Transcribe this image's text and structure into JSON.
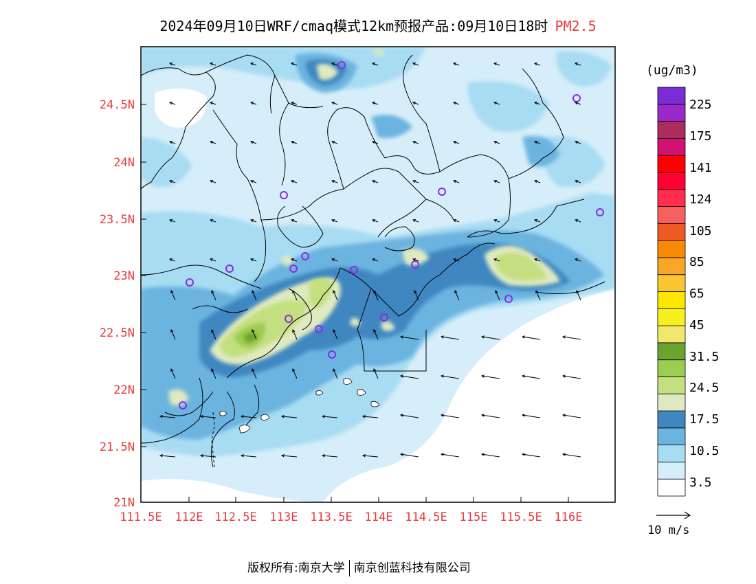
{
  "header": {
    "title": "2024年09月10日WRF/cmaq模式12km预报产品:09月10日18时",
    "pollutant": "PM2.5"
  },
  "map": {
    "lat_labels": [
      "24.5N",
      "24N",
      "23.5N",
      "23N",
      "22.5N",
      "22N",
      "21.5N",
      "21N"
    ],
    "lon_labels": [
      "111.5E",
      "112E",
      "112.5E",
      "113E",
      "113.5E",
      "114E",
      "114.5E",
      "115E",
      "115.5E",
      "116E"
    ],
    "axis_label_color": "#e8383d"
  },
  "colorbar": {
    "unit": "(ug/m3)",
    "labels": [
      "225",
      "175",
      "141",
      "124",
      "105",
      "85",
      "65",
      "45",
      "31.5",
      "24.5",
      "17.5",
      "10.5",
      "3.5"
    ],
    "colors": [
      "#ffffff",
      "#d6eef9",
      "#a8dcf3",
      "#6cb4e0",
      "#3f87c1",
      "#dfeac0",
      "#c4df7f",
      "#9ccc50",
      "#6aa42f",
      "#f2e66b",
      "#f7f01f",
      "#fde600",
      "#fbc630",
      "#f8a623",
      "#f68a05",
      "#ee5a24",
      "#f86060",
      "#ff2e4e",
      "#ff0030",
      "#ff0000",
      "#d31173",
      "#aa2d5d",
      "#9b28c8",
      "#7b2cd4"
    ]
  },
  "wind_reference": {
    "label": "10 m/s"
  },
  "footer": {
    "left": "版权所有:南京大学",
    "right": "南京创蓝科技有限公司"
  }
}
